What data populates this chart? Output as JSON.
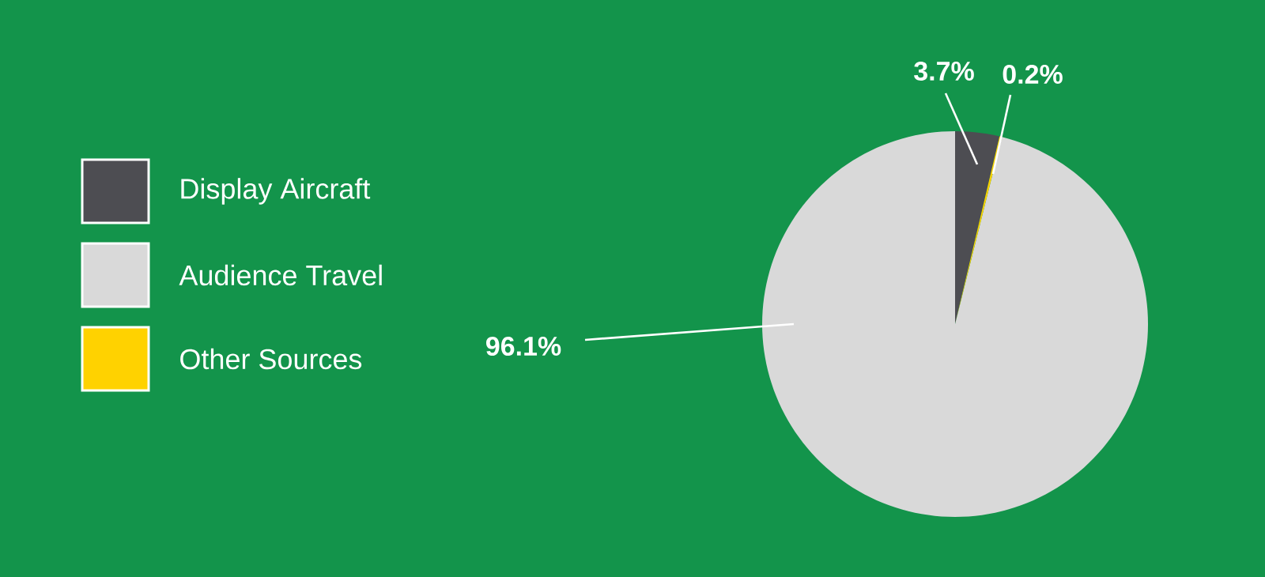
{
  "chart_data": {
    "type": "pie",
    "categories": [
      "Display Aircraft",
      "Audience Travel",
      "Other Sources"
    ],
    "values": [
      3.7,
      96.1,
      0.2
    ],
    "colors": [
      "#4d4d52",
      "#d9d9d9",
      "#ffd200"
    ],
    "value_labels": [
      "3.7%",
      "96.1%",
      "0.2%"
    ],
    "legend": "left"
  }
}
